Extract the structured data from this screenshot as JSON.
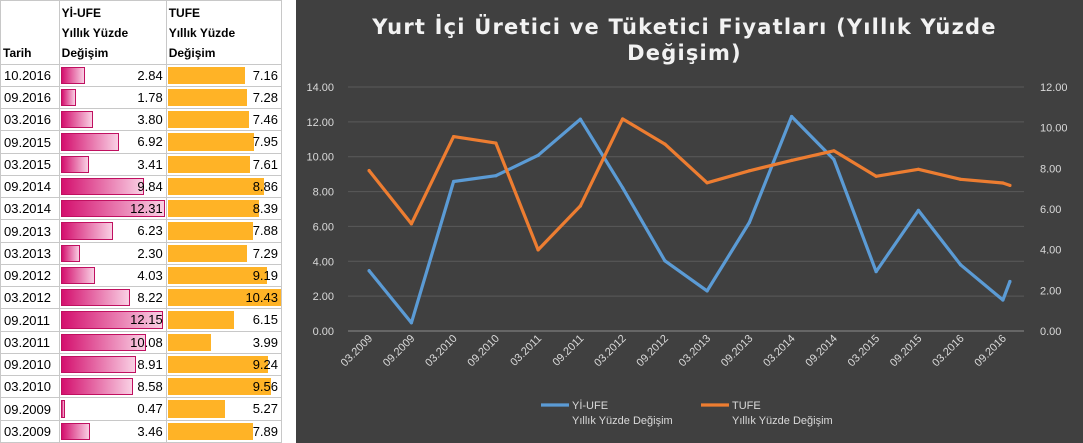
{
  "table": {
    "header": {
      "date": "Tarih",
      "yi_line1": "Yİ-UFE",
      "yi_line2": "Yıllık Yüzde",
      "yi_line3": "Değişim",
      "tu_line1": "TUFE",
      "tu_line2": "Yıllık Yüzde",
      "tu_line3": "Değişim"
    },
    "bar_scale_max": 12.31,
    "tu_scale_max": 10.43,
    "rows": [
      {
        "date": "10.2016",
        "yi": "2.84",
        "tu": "7.16"
      },
      {
        "date": "09.2016",
        "yi": "1.78",
        "tu": "7.28"
      },
      {
        "date": "03.2016",
        "yi": "3.80",
        "tu": "7.46"
      },
      {
        "date": "09.2015",
        "yi": "6.92",
        "tu": "7.95"
      },
      {
        "date": "03.2015",
        "yi": "3.41",
        "tu": "7.61"
      },
      {
        "date": "09.2014",
        "yi": "9.84",
        "tu": "8.86"
      },
      {
        "date": "03.2014",
        "yi": "12.31",
        "tu": "8.39"
      },
      {
        "date": "09.2013",
        "yi": "6.23",
        "tu": "7.88"
      },
      {
        "date": "03.2013",
        "yi": "2.30",
        "tu": "7.29"
      },
      {
        "date": "09.2012",
        "yi": "4.03",
        "tu": "9.19"
      },
      {
        "date": "03.2012",
        "yi": "8.22",
        "tu": "10.43"
      },
      {
        "date": "09.2011",
        "yi": "12.15",
        "tu": "6.15"
      },
      {
        "date": "03.2011",
        "yi": "10.08",
        "tu": "3.99"
      },
      {
        "date": "09.2010",
        "yi": "8.91",
        "tu": "9.24"
      },
      {
        "date": "03.2010",
        "yi": "8.58",
        "tu": "9.56"
      },
      {
        "date": "09.2009",
        "yi": "0.47",
        "tu": "5.27"
      },
      {
        "date": "03.2009",
        "yi": "3.46",
        "tu": "7.89"
      }
    ]
  },
  "chart_data": {
    "type": "line",
    "title": "Yurt İçi Üretici ve Tüketici Fiyatları (Yıllık Yüzde Değişim)",
    "categories": [
      "03.2009",
      "09.2009",
      "03.2010",
      "09.2010",
      "03.2011",
      "09.2011",
      "03.2012",
      "09.2012",
      "03.2013",
      "09.2013",
      "03.2014",
      "09.2014",
      "03.2015",
      "09.2015",
      "03.2016",
      "09.2016",
      "10.2016"
    ],
    "x_tick_labels": [
      "03.2009",
      "09.2009",
      "03.2010",
      "09.2010",
      "03.2011",
      "09.2011",
      "03.2012",
      "09.2012",
      "03.2013",
      "09.2013",
      "03.2014",
      "09.2014",
      "03.2015",
      "09.2015",
      "03.2016",
      "09.2016"
    ],
    "y_left_ticks": [
      "0.00",
      "2.00",
      "4.00",
      "6.00",
      "8.00",
      "10.00",
      "12.00",
      "14.00"
    ],
    "y_right_ticks": [
      "0.00",
      "2.00",
      "4.00",
      "6.00",
      "8.00",
      "10.00",
      "12.00"
    ],
    "ylim_left": [
      0,
      14
    ],
    "ylim_right": [
      0,
      12
    ],
    "series": [
      {
        "name": "Yİ-UFE",
        "name_line2": "Yıllık Yüzde Değişim",
        "axis": "left",
        "color": "#5b9bd5",
        "values": [
          3.46,
          0.47,
          8.58,
          8.91,
          10.08,
          12.15,
          8.22,
          4.03,
          2.3,
          6.23,
          12.31,
          9.84,
          3.41,
          6.92,
          3.8,
          1.78,
          2.84
        ]
      },
      {
        "name": "TUFE",
        "name_line2": "Yıllık Yüzde Değişim",
        "axis": "right",
        "color": "#ed7d31",
        "values": [
          7.89,
          5.27,
          9.56,
          9.24,
          3.99,
          6.15,
          10.43,
          9.19,
          7.29,
          7.88,
          8.39,
          8.86,
          7.61,
          7.95,
          7.46,
          7.28,
          7.16
        ]
      }
    ],
    "legend_position": "bottom",
    "grid": true,
    "background": "#404040"
  }
}
